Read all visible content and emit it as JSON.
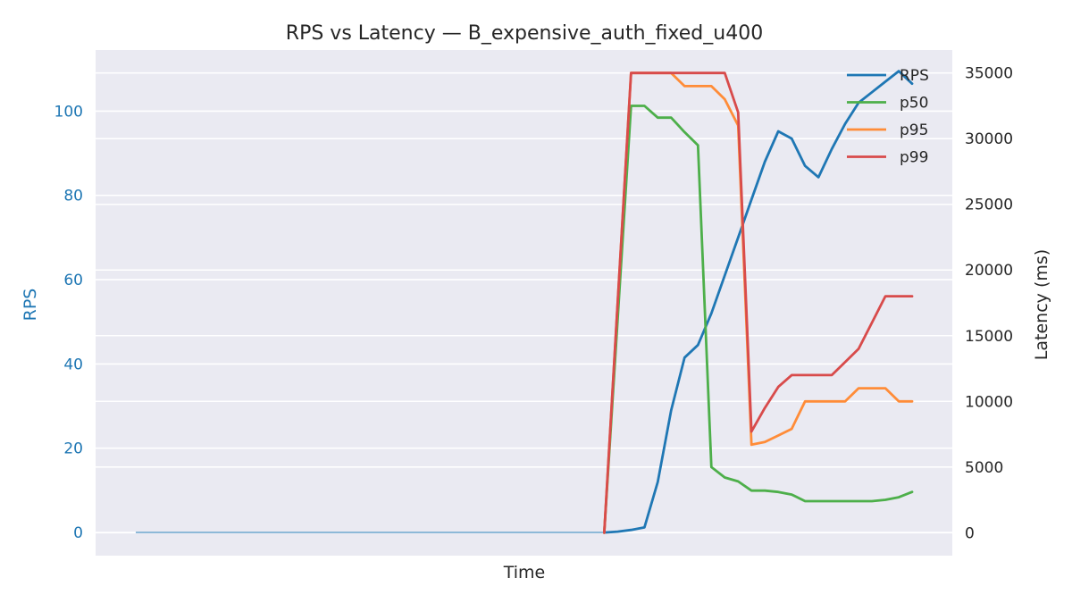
{
  "chart_data": {
    "type": "line",
    "title": "RPS vs Latency — B_expensive_auth_fixed_u400",
    "xlabel": "Time",
    "y_left": {
      "label": "RPS",
      "range": [
        -5.5,
        114.5
      ],
      "ticks": [
        0,
        20,
        40,
        60,
        80,
        100
      ],
      "tick_labels": [
        "0",
        "20",
        "40",
        "60",
        "80",
        "100"
      ],
      "color": "#1f77b4"
    },
    "y_right": {
      "label": "Latency (ms)",
      "range": [
        -1750,
        36750
      ],
      "ticks": [
        0,
        5000,
        10000,
        15000,
        20000,
        25000,
        30000,
        35000
      ],
      "tick_labels": [
        "0",
        "5000",
        "10000",
        "15000",
        "20000",
        "25000",
        "30000",
        "35000"
      ],
      "color": "#262626"
    },
    "x_range": [
      -3,
      61
    ],
    "grid": true,
    "legend_position": "top-right",
    "series": [
      {
        "name": "RPS",
        "axis": "left",
        "color": "#1f77b4",
        "x": [
          35,
          36,
          37,
          38,
          39,
          40,
          41,
          42,
          43,
          44,
          45,
          46,
          47,
          48,
          49,
          50,
          51,
          52,
          53,
          54,
          55,
          56,
          57,
          58
        ],
        "y": [
          0,
          0.2,
          0.6,
          1.2,
          12,
          29,
          41.5,
          44.5,
          52,
          61,
          70,
          79,
          88,
          95.2,
          93.5,
          87,
          84.3,
          91,
          97,
          102,
          104.5,
          107,
          109.5,
          106.5
        ]
      },
      {
        "name": "p50",
        "axis": "right",
        "color": "#4daf4a",
        "x": [
          35,
          37,
          38,
          39,
          40,
          41,
          42,
          43,
          44,
          45,
          46,
          47,
          48,
          49,
          50,
          51,
          52,
          53,
          54,
          55,
          56,
          57,
          58
        ],
        "y": [
          0,
          32500,
          32500,
          31600,
          31600,
          30500,
          29500,
          5000,
          4200,
          3900,
          3200,
          3200,
          3100,
          2900,
          2400,
          2400,
          2400,
          2400,
          2400,
          2400,
          2500,
          2700,
          3100
        ]
      },
      {
        "name": "p95",
        "axis": "right",
        "color": "#ff8c38",
        "x": [
          35,
          37,
          38,
          39,
          40,
          41,
          42,
          43,
          44,
          45,
          46,
          47,
          48,
          49,
          50,
          51,
          52,
          53,
          54,
          55,
          56,
          57,
          58
        ],
        "y": [
          0,
          35000,
          35000,
          35000,
          35000,
          34000,
          34000,
          34000,
          33000,
          31000,
          6700,
          6900,
          7400,
          7900,
          10000,
          10000,
          10000,
          10000,
          11000,
          11000,
          11000,
          10000,
          10000
        ]
      },
      {
        "name": "p99",
        "axis": "right",
        "color": "#d84b4b",
        "x": [
          35,
          37,
          38,
          39,
          40,
          41,
          42,
          43,
          44,
          45,
          46,
          47,
          48,
          49,
          50,
          51,
          52,
          53,
          54,
          55,
          56,
          57,
          58
        ],
        "y": [
          0,
          35000,
          35000,
          35000,
          35000,
          35000,
          35000,
          35000,
          35000,
          32000,
          7700,
          9500,
          11100,
          12000,
          12000,
          12000,
          12000,
          13000,
          14000,
          16000,
          18000,
          18000,
          18000
        ]
      }
    ],
    "baseline": {
      "x_start": 0,
      "x_end": 35,
      "y": 0
    }
  }
}
